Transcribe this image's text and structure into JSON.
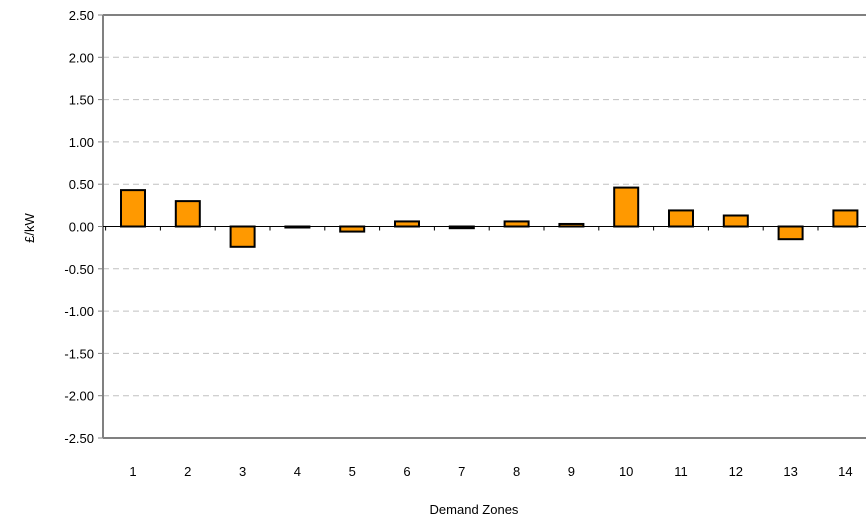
{
  "chart_data": {
    "type": "bar",
    "title": "",
    "xlabel": "Demand Zones",
    "ylabel": "£/kW",
    "ylim": [
      -2.5,
      2.5
    ],
    "yticks": [
      -2.5,
      -2.0,
      -1.5,
      -1.0,
      -0.5,
      0.0,
      0.5,
      1.0,
      1.5,
      2.0,
      2.5
    ],
    "ytick_labels": [
      "-2.50",
      "-2.00",
      "-1.50",
      "-1.00",
      "-0.50",
      "0.00",
      "0.50",
      "1.00",
      "1.50",
      "2.00",
      "2.50"
    ],
    "categories": [
      "1",
      "2",
      "3",
      "4",
      "5",
      "6",
      "7",
      "8",
      "9",
      "10",
      "11",
      "12",
      "13",
      "14"
    ],
    "values": [
      0.43,
      0.3,
      -0.24,
      0.0,
      -0.06,
      0.06,
      -0.02,
      0.06,
      0.03,
      0.46,
      0.19,
      0.13,
      -0.15,
      0.19
    ],
    "grid": true,
    "legend": "none",
    "colors": {
      "bar_fill": "#FF9900",
      "bar_stroke": "#000000",
      "axis": "#808080",
      "grid": "#C0C0C0"
    }
  }
}
